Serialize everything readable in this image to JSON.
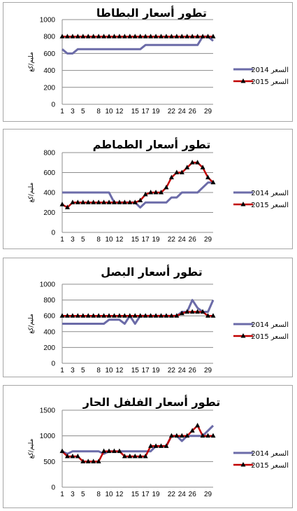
{
  "chart_data": [
    {
      "type": "line",
      "title": "تطور أسعار البطاطا",
      "ylabel": "مليم/كغ",
      "ylim": [
        0,
        1000
      ],
      "yticks": [
        0,
        200,
        400,
        600,
        800,
        1000
      ],
      "xticks": [
        1,
        3,
        5,
        8,
        10,
        12,
        15,
        17,
        19,
        22,
        24,
        26,
        29
      ],
      "legend": "right",
      "series": [
        {
          "name": "2014 السعر",
          "color": "#6b6ba8",
          "marker": "none",
          "x": [
            1,
            2,
            3,
            4,
            5,
            6,
            7,
            8,
            9,
            10,
            11,
            12,
            13,
            14,
            15,
            16,
            17,
            18,
            19,
            20,
            21,
            22,
            23,
            24,
            25,
            26,
            27,
            28,
            29,
            30
          ],
          "values": [
            650,
            600,
            600,
            650,
            650,
            650,
            650,
            650,
            650,
            650,
            650,
            650,
            650,
            650,
            650,
            650,
            700,
            700,
            700,
            700,
            700,
            700,
            700,
            700,
            700,
            700,
            700,
            800,
            800,
            750
          ]
        },
        {
          "name": "2015 السعر",
          "color": "#c00000",
          "marker": "triangle",
          "x": [
            1,
            2,
            3,
            4,
            5,
            6,
            7,
            8,
            9,
            10,
            11,
            12,
            13,
            14,
            15,
            16,
            17,
            18,
            19,
            20,
            21,
            22,
            23,
            24,
            25,
            26,
            27,
            28,
            29,
            30
          ],
          "values": [
            800,
            800,
            800,
            800,
            800,
            800,
            800,
            800,
            800,
            800,
            800,
            800,
            800,
            800,
            800,
            800,
            800,
            800,
            800,
            800,
            800,
            800,
            800,
            800,
            800,
            800,
            800,
            800,
            800,
            800
          ]
        }
      ]
    },
    {
      "type": "line",
      "title": "تطور أسعار الطماطم",
      "ylabel": "مليم/كغ",
      "ylim": [
        0,
        800
      ],
      "yticks": [
        0,
        200,
        400,
        600,
        800
      ],
      "xticks": [
        1,
        3,
        5,
        8,
        10,
        12,
        15,
        17,
        19,
        22,
        24,
        26,
        29
      ],
      "legend": "right",
      "series": [
        {
          "name": "2014 السعر",
          "color": "#6b6ba8",
          "marker": "none",
          "x": [
            1,
            2,
            3,
            4,
            5,
            6,
            7,
            8,
            9,
            10,
            11,
            12,
            13,
            14,
            15,
            16,
            17,
            18,
            19,
            20,
            21,
            22,
            23,
            24,
            25,
            26,
            27,
            28,
            29,
            30
          ],
          "values": [
            400,
            400,
            400,
            400,
            400,
            400,
            400,
            400,
            400,
            400,
            300,
            300,
            300,
            300,
            300,
            250,
            300,
            300,
            300,
            300,
            300,
            350,
            350,
            400,
            400,
            400,
            400,
            450,
            500,
            500
          ]
        },
        {
          "name": "2015 السعر",
          "color": "#c00000",
          "marker": "triangle",
          "x": [
            1,
            2,
            3,
            4,
            5,
            6,
            7,
            8,
            9,
            10,
            11,
            12,
            13,
            14,
            15,
            16,
            17,
            18,
            19,
            20,
            21,
            22,
            23,
            24,
            25,
            26,
            27,
            28,
            29,
            30
          ],
          "values": [
            280,
            250,
            300,
            300,
            300,
            300,
            300,
            300,
            300,
            300,
            300,
            300,
            300,
            300,
            300,
            320,
            380,
            400,
            400,
            400,
            450,
            550,
            600,
            600,
            650,
            700,
            700,
            650,
            550,
            500
          ]
        }
      ]
    },
    {
      "type": "line",
      "title": "تطور أسعار البصل",
      "ylabel": "مليم/كغ",
      "ylim": [
        0,
        1000
      ],
      "yticks": [
        0,
        200,
        400,
        600,
        800,
        1000
      ],
      "xticks": [
        1,
        3,
        5,
        8,
        10,
        12,
        15,
        17,
        19,
        22,
        24,
        26,
        29
      ],
      "legend": "right",
      "series": [
        {
          "name": "2014 السعر",
          "color": "#6b6ba8",
          "marker": "none",
          "x": [
            1,
            2,
            3,
            4,
            5,
            6,
            7,
            8,
            9,
            10,
            11,
            12,
            13,
            14,
            15,
            16,
            17,
            18,
            19,
            20,
            21,
            22,
            23,
            24,
            25,
            26,
            27,
            28,
            29,
            30
          ],
          "values": [
            500,
            500,
            500,
            500,
            500,
            500,
            500,
            500,
            500,
            550,
            550,
            550,
            500,
            600,
            500,
            600,
            600,
            600,
            600,
            600,
            600,
            600,
            600,
            650,
            650,
            800,
            700,
            650,
            650,
            800
          ]
        },
        {
          "name": "2015 السعر",
          "color": "#c00000",
          "marker": "triangle",
          "x": [
            1,
            2,
            3,
            4,
            5,
            6,
            7,
            8,
            9,
            10,
            11,
            12,
            13,
            14,
            15,
            16,
            17,
            18,
            19,
            20,
            21,
            22,
            23,
            24,
            25,
            26,
            27,
            28,
            29,
            30
          ],
          "values": [
            600,
            600,
            600,
            600,
            600,
            600,
            600,
            600,
            600,
            600,
            600,
            600,
            600,
            600,
            600,
            600,
            600,
            600,
            600,
            600,
            600,
            600,
            600,
            630,
            650,
            650,
            650,
            650,
            600,
            600
          ]
        }
      ]
    },
    {
      "type": "line",
      "title": "تطور أسعار الفلفل الحار",
      "ylabel": "مليم/كغ",
      "ylim": [
        0,
        1500
      ],
      "yticks": [
        0,
        500,
        1000,
        1500
      ],
      "xticks": [
        1,
        3,
        5,
        8,
        10,
        12,
        15,
        17,
        19,
        22,
        24,
        26,
        29
      ],
      "legend": "right",
      "series": [
        {
          "name": "2014 السعر",
          "color": "#6b6ba8",
          "marker": "none",
          "x": [
            1,
            2,
            3,
            4,
            5,
            6,
            7,
            8,
            9,
            10,
            11,
            12,
            13,
            14,
            15,
            16,
            17,
            18,
            19,
            20,
            21,
            22,
            23,
            24,
            25,
            26,
            27,
            28,
            29,
            30
          ],
          "values": [
            700,
            650,
            700,
            700,
            700,
            700,
            700,
            700,
            650,
            700,
            700,
            700,
            700,
            700,
            700,
            700,
            700,
            700,
            800,
            800,
            800,
            1000,
            1000,
            900,
            1000,
            1000,
            1000,
            1000,
            1100,
            1200
          ]
        },
        {
          "name": "2015 السعر",
          "color": "#c00000",
          "marker": "triangle",
          "x": [
            1,
            2,
            3,
            4,
            5,
            6,
            7,
            8,
            9,
            10,
            11,
            12,
            13,
            14,
            15,
            16,
            17,
            18,
            19,
            20,
            21,
            22,
            23,
            24,
            25,
            26,
            27,
            28,
            29,
            30
          ],
          "values": [
            700,
            600,
            600,
            600,
            500,
            500,
            500,
            500,
            700,
            700,
            700,
            700,
            600,
            600,
            600,
            600,
            600,
            800,
            800,
            800,
            800,
            1000,
            1000,
            1000,
            1000,
            1100,
            1200,
            1000,
            1000,
            1000
          ]
        }
      ]
    }
  ]
}
